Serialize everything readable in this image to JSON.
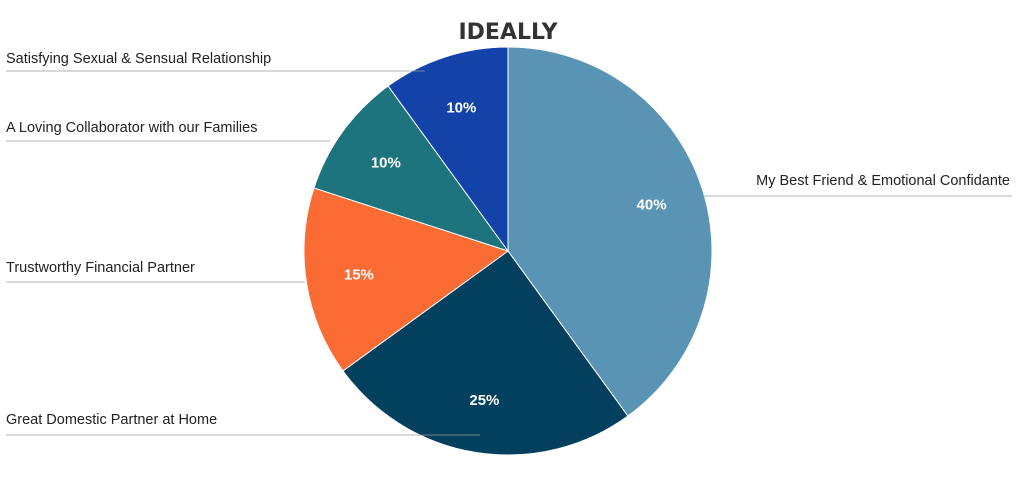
{
  "chart_data": {
    "type": "pie",
    "title": "IDEALLY",
    "slices": [
      {
        "label": "My Best Friend & Emotional Confidante",
        "value": 40,
        "value_label": "40%",
        "color": "#5a94b4"
      },
      {
        "label": "Great Domestic Partner at Home",
        "value": 25,
        "value_label": "25%",
        "color": "#03405e"
      },
      {
        "label": "Trustworthy Financial Partner",
        "value": 15,
        "value_label": "15%",
        "color": "#fb6c35"
      },
      {
        "label": "A Loving Collaborator with our Families",
        "value": 10,
        "value_label": "10%",
        "color": "#1e747e"
      },
      {
        "label": "Satisfying Sexual & Sensual Relationship",
        "value": 10,
        "value_label": "10%",
        "color": "#1343a8"
      }
    ],
    "start_angle": "12 o'clock",
    "direction": "clockwise",
    "legend": "none (outside labels with leader lines)"
  }
}
